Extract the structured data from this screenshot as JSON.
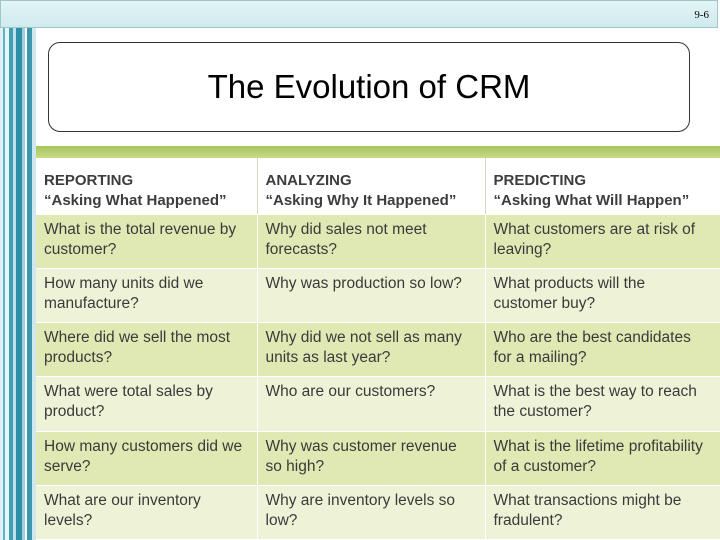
{
  "slide_number": "9-6",
  "title": "The Evolution of CRM",
  "table": {
    "headers": [
      {
        "line1": "REPORTING",
        "line2": "“Asking What Happened”"
      },
      {
        "line1": "ANALYZING",
        "line2": "“Asking Why It Happened”"
      },
      {
        "line1": "PREDICTING",
        "line2": "“Asking What Will Happen”"
      }
    ],
    "rows": [
      [
        "What is the total revenue by customer?",
        "Why did sales not meet forecasts?",
        "What customers are at risk of leaving?"
      ],
      [
        "How many units did we manufacture?",
        "Why was production so low?",
        "What products will the customer buy?"
      ],
      [
        "Where did we sell the most products?",
        "Why did we not sell as many units as last year?",
        "Who are the best candidates for a mailing?"
      ],
      [
        "What were total sales by product?",
        "Who are our customers?",
        "What is the best way to reach the customer?"
      ],
      [
        "How many customers did we serve?",
        "Why was customer revenue so high?",
        "What is the lifetime profitability of a customer?"
      ],
      [
        "What are our inventory levels?",
        "Why are inventory levels so low?",
        "What transactions might be fradulent?"
      ]
    ]
  },
  "colors": {
    "row_dark": "#e0e9b4",
    "row_light": "#eef3d7",
    "band": "#a8c55a",
    "stripe": "#3f9fb3"
  }
}
